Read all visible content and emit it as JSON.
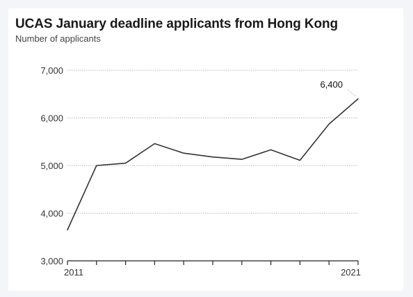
{
  "chart_data": {
    "type": "line",
    "title": "UCAS January deadline applicants from Hong Kong",
    "subtitle": "Number of applicants",
    "xlabel": "",
    "ylabel": "",
    "x": [
      2011,
      2012,
      2013,
      2014,
      2015,
      2016,
      2017,
      2018,
      2019,
      2020,
      2021
    ],
    "x_tick_labels": [
      "2011",
      "",
      "",
      "",
      "",
      "",
      "",
      "",
      "",
      "",
      "2021"
    ],
    "ylim": [
      3000,
      7000
    ],
    "y_ticks": [
      3000,
      4000,
      5000,
      6000,
      7000
    ],
    "y_tick_labels": [
      "3,000",
      "4,000",
      "5,000",
      "6,000",
      "7,000"
    ],
    "series": [
      {
        "values": [
          3650,
          5000,
          5050,
          5460,
          5260,
          5180,
          5130,
          5330,
          5110,
          5870,
          6400
        ]
      }
    ],
    "annotations": [
      {
        "x": 2021,
        "y": 6400,
        "text": "6,400"
      }
    ],
    "grid": true,
    "legend": "none",
    "colors": {
      "line": "#333333",
      "grid": "#b8b8b8",
      "text": "#333333"
    }
  }
}
